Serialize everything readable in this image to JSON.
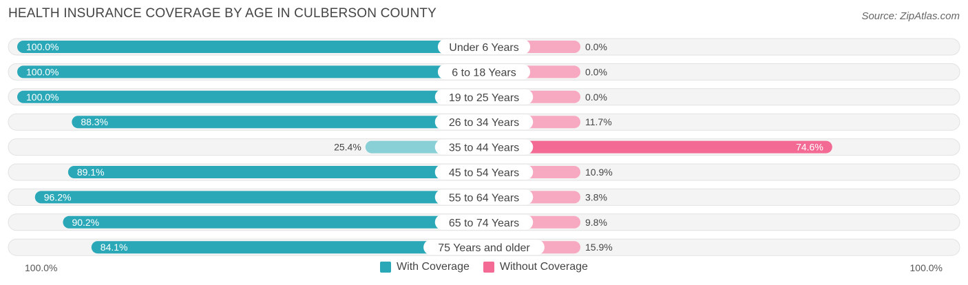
{
  "title": "HEALTH INSURANCE COVERAGE BY AGE IN CULBERSON COUNTY",
  "source": "Source: ZipAtlas.com",
  "colors": {
    "with_strong": "#2ba8b8",
    "with_light": "#89cfd6",
    "without_strong": "#f36b94",
    "without_light": "#f7a9c1"
  },
  "axis": {
    "left_label": "100.0%",
    "right_label": "100.0%"
  },
  "legend": {
    "with_label": "With Coverage",
    "without_label": "Without Coverage"
  },
  "chart_data": {
    "type": "bar",
    "orientation": "horizontal-diverging",
    "title": "HEALTH INSURANCE COVERAGE BY AGE IN CULBERSON COUNTY",
    "xlim": [
      -100,
      100
    ],
    "categories": [
      "Under 6 Years",
      "6 to 18 Years",
      "19 to 25 Years",
      "26 to 34 Years",
      "35 to 44 Years",
      "45 to 54 Years",
      "55 to 64 Years",
      "65 to 74 Years",
      "75 Years and older"
    ],
    "series": [
      {
        "name": "With Coverage",
        "values": [
          100.0,
          100.0,
          100.0,
          88.3,
          25.4,
          89.1,
          96.2,
          90.2,
          84.1
        ],
        "labels": [
          "100.0%",
          "100.0%",
          "100.0%",
          "88.3%",
          "25.4%",
          "89.1%",
          "96.2%",
          "90.2%",
          "84.1%"
        ]
      },
      {
        "name": "Without Coverage",
        "values": [
          0.0,
          0.0,
          0.0,
          11.7,
          74.6,
          10.9,
          3.8,
          9.8,
          15.9
        ],
        "labels": [
          "0.0%",
          "0.0%",
          "0.0%",
          "11.7%",
          "74.6%",
          "10.9%",
          "3.8%",
          "9.8%",
          "15.9%"
        ]
      }
    ],
    "legend_position": "bottom-center"
  }
}
